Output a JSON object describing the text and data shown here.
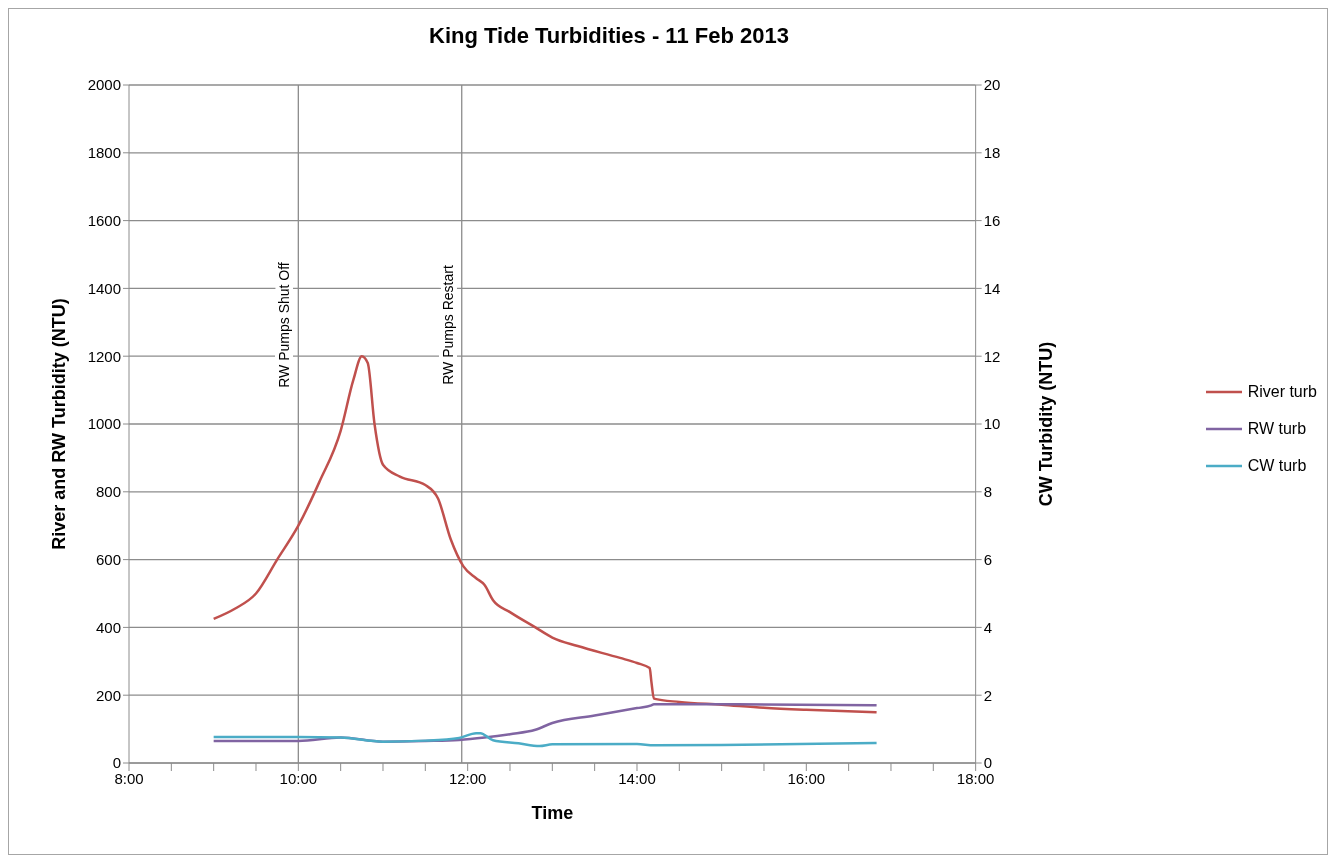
{
  "chart_data": {
    "type": "line",
    "title": "King Tide Turbidities - 11 Feb 2013",
    "xlabel": "Time",
    "ylabel": "River and RW Turbidity (NTU)",
    "y2label": "CW Turbidity (NTU)",
    "xlim": [
      8,
      18
    ],
    "xticks": [
      {
        "value": 8,
        "label": "8:00"
      },
      {
        "value": 8.5,
        "label": null
      },
      {
        "value": 9,
        "label": null
      },
      {
        "value": 9.5,
        "label": null
      },
      {
        "value": 10,
        "label": "10:00"
      },
      {
        "value": 10.5,
        "label": null
      },
      {
        "value": 11,
        "label": null
      },
      {
        "value": 11.5,
        "label": null
      },
      {
        "value": 12,
        "label": "12:00"
      },
      {
        "value": 12.5,
        "label": null
      },
      {
        "value": 13,
        "label": null
      },
      {
        "value": 13.5,
        "label": null
      },
      {
        "value": 14,
        "label": "14:00"
      },
      {
        "value": 14.5,
        "label": null
      },
      {
        "value": 15,
        "label": null
      },
      {
        "value": 15.5,
        "label": null
      },
      {
        "value": 16,
        "label": "16:00"
      },
      {
        "value": 16.5,
        "label": null
      },
      {
        "value": 17,
        "label": null
      },
      {
        "value": 17.5,
        "label": null
      },
      {
        "value": 18,
        "label": "18:00"
      }
    ],
    "ylim": [
      0,
      2000
    ],
    "yticks": [
      0,
      200,
      400,
      600,
      800,
      1000,
      1200,
      1400,
      1600,
      1800,
      2000
    ],
    "y2lim": [
      0,
      20
    ],
    "y2ticks": [
      0,
      2,
      4,
      6,
      8,
      10,
      12,
      14,
      16,
      18,
      20
    ],
    "grid": "y",
    "legend": "right",
    "marker": "none",
    "line_style": "solid",
    "ref_lines": [
      {
        "axis": "x",
        "value": 10,
        "label": "RW Pumps  Shut Off",
        "color": "#8c8c8c"
      },
      {
        "axis": "x",
        "value": 11.93,
        "label": "RW Pumps  Restart",
        "color": "#8c8c8c"
      }
    ],
    "series": [
      {
        "name": "River turb",
        "color": "#c0504d",
        "x": [
          9,
          9.25,
          9.5,
          9.75,
          10,
          10.25,
          10.5,
          10.65,
          10.75,
          10.82,
          10.9,
          11,
          11.2,
          11.5,
          11.65,
          11.8,
          11.95,
          12.1,
          12.2,
          12.3,
          12.5,
          12.8,
          13,
          13.3,
          13.8,
          14,
          14.15,
          14.17,
          14.2,
          14.5,
          15,
          15.5,
          16,
          16.83
        ],
        "values": [
          425,
          455,
          500,
          600,
          700,
          830,
          980,
          1130,
          1200,
          1180,
          1000,
          880,
          845,
          820,
          780,
          660,
          580,
          545,
          525,
          480,
          445,
          400,
          370,
          345,
          310,
          295,
          280,
          240,
          190,
          180,
          172,
          163,
          157,
          150
        ]
      },
      {
        "name": "RW turb",
        "color": "#8064a2",
        "x": [
          9,
          10,
          10.5,
          11,
          11.5,
          11.9,
          12.2,
          12.5,
          12.8,
          13,
          13.5,
          14,
          14.17,
          14.2,
          15,
          16.83
        ],
        "values": [
          65,
          65,
          75,
          63,
          65,
          68,
          75,
          85,
          98,
          118,
          140,
          162,
          170,
          173,
          173,
          170
        ]
      },
      {
        "name": "CW turb",
        "color": "#4bacc6",
        "axis": "y2",
        "x": [
          9,
          10,
          10.5,
          11,
          11.5,
          11.9,
          12.1,
          12.15,
          12.3,
          12.6,
          12.85,
          13,
          14,
          14.2,
          15,
          16.83
        ],
        "values": [
          0.77,
          0.77,
          0.75,
          0.63,
          0.66,
          0.74,
          0.88,
          0.88,
          0.67,
          0.58,
          0.5,
          0.55,
          0.56,
          0.52,
          0.53,
          0.59
        ]
      }
    ]
  }
}
